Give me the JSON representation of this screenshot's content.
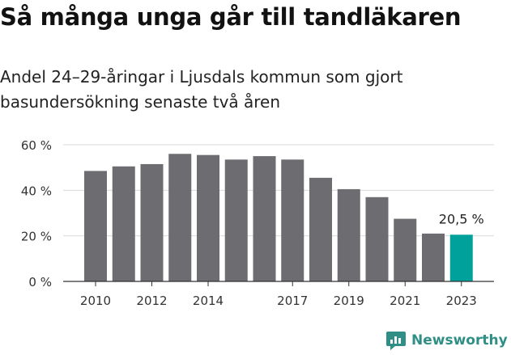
{
  "title": "Så många unga går till tandläkaren",
  "subtitle": "Andel 24–29-åringar i Ljusdals kommun som gjort basundersökning senaste två åren",
  "brand": {
    "name": "Newsworthy"
  },
  "colors": {
    "bar": "#6d6c71",
    "highlight": "#00a19a",
    "grid": "#d9d9d9",
    "axis": "#333333"
  },
  "chart_data": {
    "type": "bar",
    "title": "Så många unga går till tandläkaren",
    "subtitle": "Andel 24–29-åringar i Ljusdals kommun som gjort basundersökning senaste två åren",
    "categories": [
      "2010",
      "2011",
      "2012",
      "2013",
      "2014",
      "2015",
      "2016",
      "2017",
      "2018",
      "2019",
      "2020",
      "2021",
      "2022",
      "2023"
    ],
    "values": [
      48.5,
      50.5,
      51.5,
      56,
      55.5,
      53.5,
      55,
      53.5,
      45.5,
      40.5,
      37,
      27.5,
      21,
      20.5
    ],
    "x_tick_labels": [
      "2010",
      "2012",
      "2014",
      "2017",
      "2019",
      "2021",
      "2023"
    ],
    "y_ticks": [
      "0 %",
      "20 %",
      "40 %",
      "60 %"
    ],
    "y_tick_values": [
      0,
      20,
      40,
      60
    ],
    "ylim": [
      0,
      60
    ],
    "highlight_index": 13,
    "annotation": "20,5 %",
    "grid": true
  }
}
